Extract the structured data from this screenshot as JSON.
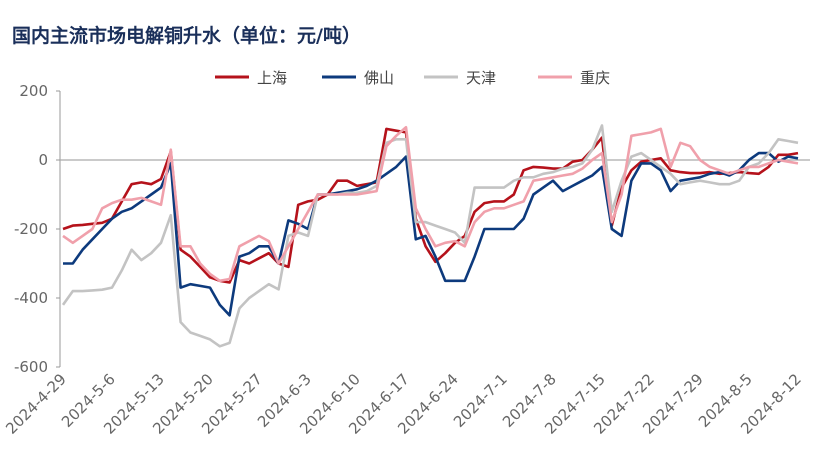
{
  "chart_data": {
    "type": "line",
    "title": "国内主流市场电解铜升水（单位：元/吨）",
    "categories": [
      "2024-4-29",
      null,
      null,
      null,
      null,
      "2024-5-6",
      null,
      null,
      null,
      null,
      "2024-5-13",
      null,
      null,
      null,
      null,
      "2024-5-20",
      null,
      null,
      null,
      null,
      "2024-5-27",
      null,
      null,
      null,
      null,
      "2024-6-3",
      null,
      null,
      null,
      null,
      "2024-6-10",
      null,
      null,
      null,
      null,
      "2024-6-17",
      null,
      null,
      null,
      null,
      "2024-6-24",
      null,
      null,
      null,
      null,
      "2024-7-1",
      null,
      null,
      null,
      null,
      "2024-7-8",
      null,
      null,
      null,
      null,
      "2024-7-15",
      null,
      null,
      null,
      null,
      "2024-7-22",
      null,
      null,
      null,
      null,
      "2024-7-29",
      null,
      null,
      null,
      null,
      "2024-8-5",
      null,
      null,
      null,
      null,
      "2024-8-12"
    ],
    "series": [
      {
        "name": "上海",
        "color": "#b5121b",
        "values": [
          -200,
          -190,
          -188,
          -185,
          -182,
          -170,
          -120,
          -70,
          -65,
          -70,
          -55,
          25,
          -260,
          -280,
          -310,
          -340,
          -350,
          -355,
          -290,
          -300,
          -285,
          -270,
          -300,
          -310,
          -130,
          -120,
          -115,
          -100,
          -60,
          -60,
          -75,
          -70,
          -65,
          90,
          85,
          80,
          -170,
          -250,
          -295,
          -270,
          -240,
          -220,
          -150,
          -125,
          -120,
          -120,
          -100,
          -30,
          -20,
          -22,
          -25,
          -25,
          -5,
          0,
          30,
          65,
          -190,
          -80,
          -30,
          -5,
          0,
          5,
          -30,
          -35,
          -38,
          -38,
          -35,
          -40,
          -38,
          -35,
          -38,
          -40,
          -20,
          15,
          15,
          20
        ]
      },
      {
        "name": "佛山",
        "color": "#0d3a7d",
        "values": [
          -300,
          -300,
          -260,
          -230,
          -200,
          -170,
          -150,
          -140,
          -120,
          -100,
          -80,
          -10,
          -370,
          -360,
          -365,
          -370,
          -420,
          -450,
          -280,
          -270,
          -250,
          -250,
          -300,
          -175,
          -185,
          -200,
          -100,
          -100,
          -95,
          -90,
          -85,
          -75,
          -60,
          -40,
          -20,
          10,
          -230,
          -220,
          -280,
          -350,
          -350,
          -350,
          -280,
          -200,
          -200,
          -200,
          -200,
          -170,
          -100,
          -80,
          -60,
          -90,
          -75,
          -60,
          -45,
          -20,
          -200,
          -220,
          -60,
          -10,
          -10,
          -30,
          -90,
          -60,
          -55,
          -50,
          -40,
          -35,
          -45,
          -30,
          0,
          20,
          20,
          -5,
          10,
          5
        ]
      },
      {
        "name": "天津",
        "color": "#c3c3c3",
        "values": [
          -420,
          -380,
          -380,
          -378,
          -376,
          -370,
          -320,
          -260,
          -290,
          -270,
          -240,
          -160,
          -470,
          -500,
          -510,
          -520,
          -540,
          -530,
          -430,
          -400,
          -380,
          -360,
          -375,
          -220,
          -210,
          -220,
          -100,
          -100,
          -100,
          -95,
          -95,
          -90,
          -75,
          50,
          60,
          60,
          -180,
          -180,
          -190,
          -200,
          -210,
          -240,
          -80,
          -80,
          -80,
          -80,
          -60,
          -50,
          -50,
          -40,
          -35,
          -25,
          -20,
          -10,
          30,
          100,
          -150,
          -60,
          10,
          20,
          0,
          -20,
          -40,
          -70,
          -65,
          -60,
          -65,
          -70,
          -70,
          -60,
          -20,
          -10,
          20,
          60,
          55,
          50
        ]
      },
      {
        "name": "重庆",
        "color": "#f0a0ab",
        "values": [
          -220,
          -240,
          -220,
          -200,
          -140,
          -125,
          -115,
          -115,
          -110,
          -120,
          -130,
          30,
          -250,
          -250,
          -300,
          -330,
          -350,
          -345,
          -250,
          -235,
          -220,
          -235,
          -300,
          -250,
          -200,
          -150,
          -100,
          -100,
          -100,
          -100,
          -100,
          -95,
          -90,
          40,
          70,
          95,
          -140,
          -200,
          -250,
          -240,
          -235,
          -250,
          -180,
          -150,
          -140,
          -140,
          -130,
          -120,
          -60,
          -55,
          -50,
          -45,
          -40,
          -25,
          0,
          20,
          -180,
          -100,
          70,
          75,
          80,
          90,
          -20,
          50,
          40,
          0,
          -20,
          -30,
          -40,
          -30,
          -20,
          -20,
          -10,
          0,
          -5,
          -10
        ]
      }
    ],
    "ylim": [
      -600,
      200
    ],
    "yticks": [
      -600,
      -400,
      -200,
      0,
      200
    ],
    "legend": "top"
  }
}
